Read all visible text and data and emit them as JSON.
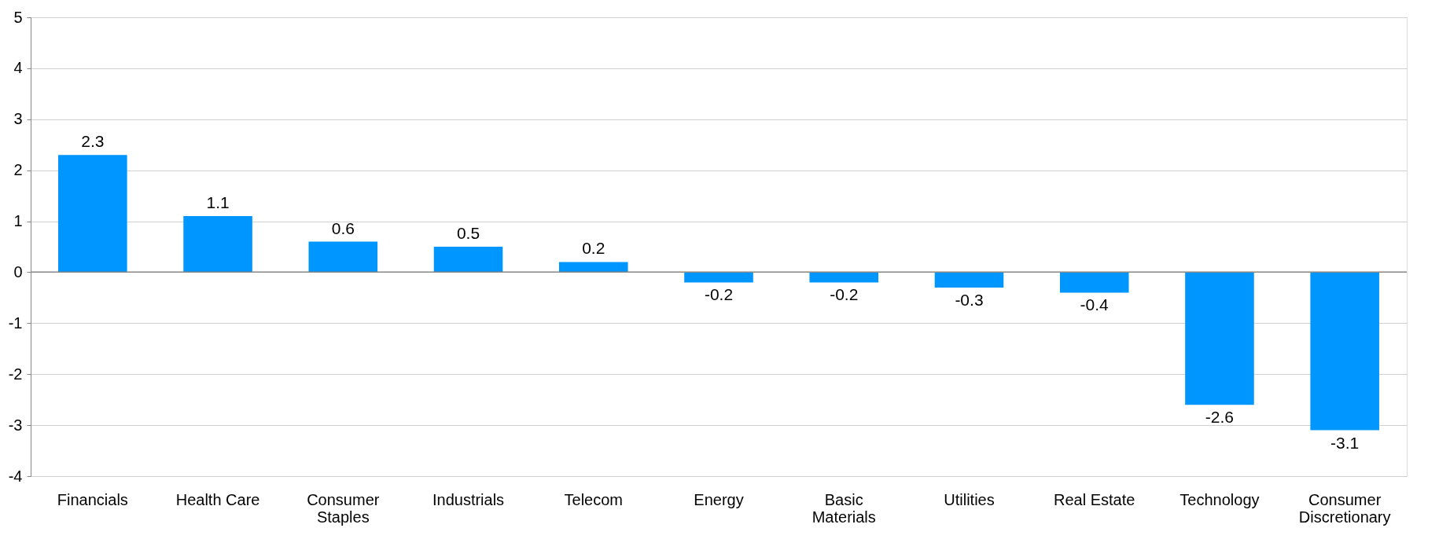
{
  "chart_data": {
    "type": "bar",
    "categories": [
      "Financials",
      "Health Care",
      "Consumer Staples",
      "Industrials",
      "Telecom",
      "Energy",
      "Basic Materials",
      "Utilities",
      "Real Estate",
      "Technology",
      "Consumer Discretionary"
    ],
    "values": [
      2.3,
      1.1,
      0.6,
      0.5,
      0.2,
      -0.2,
      -0.2,
      -0.3,
      -0.4,
      -2.6,
      -3.1
    ],
    "color": "#0096ff",
    "ylim": [
      -4,
      5
    ],
    "yticks": [
      -4,
      -3,
      -2,
      -1,
      0,
      1,
      2,
      3,
      4,
      5
    ],
    "grid": "y",
    "data_labels": true
  }
}
